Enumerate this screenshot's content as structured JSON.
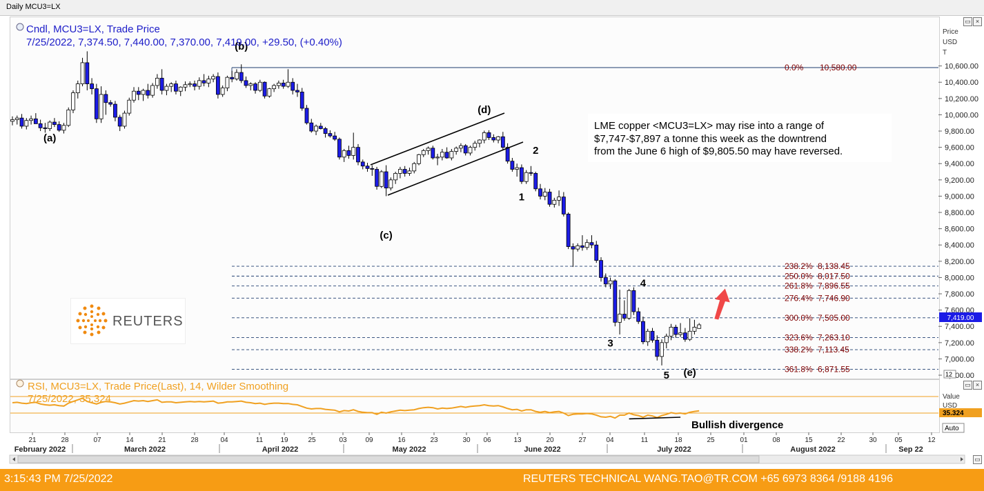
{
  "window": {
    "title": "Daily MCU3=LX"
  },
  "legend": {
    "line1": "Cndl, MCU3=LX, Trade Price",
    "line2": "7/25/2022, 7,374.50, 7,440.00, 7,370.00, 7,419.00, +29.50, (+0.40%)"
  },
  "rsi_legend": {
    "line1": "RSI, MCU3=LX, Trade Price(Last),  14, Wilder Smoothing",
    "line2": "7/25/2022, 35.324"
  },
  "annotation_text": [
    "LME copper <MCU3=LX> may rise into a range of",
    "$7,747-$7,897 a tonne this week as the downtrend",
    "from the June 6 high of $9,805.50 may have reversed."
  ],
  "bullish_label": "Bullish divergence",
  "price_axis_title": [
    "Price",
    "USD",
    "T"
  ],
  "rsi_axis_title": [
    "Value",
    "USD"
  ],
  "last_price_tag": "7,419.00",
  "rsi_tag": "35.324",
  "zoom_label": "12",
  "auto_label": "Auto",
  "logo_text": "REUTERS",
  "footer": {
    "time": "3:15:43 PM 7/25/2022",
    "contact": "REUTERS TECHNICAL  WANG.TAO@TR.COM  +65 6973 8364 /9188 4196"
  },
  "colors": {
    "up_candle": "#ffffff",
    "down_candle": "#1c1ce6",
    "legend_blue": "#1c1cc8",
    "rsi_orange": "#f0a020",
    "fib_label": "#800000",
    "footer_bg": "#f79c14",
    "arrow_red": "#f04848"
  },
  "chart_data": {
    "type": "candlestick",
    "ylim": [
      6700,
      10750
    ],
    "y_ticks": [
      "6,800.00",
      "7,000.00",
      "7,200.00",
      "7,400.00",
      "7,600.00",
      "7,800.00",
      "8,000.00",
      "8,200.00",
      "8,400.00",
      "8,600.00",
      "8,800.00",
      "9,000.00",
      "9,200.00",
      "9,400.00",
      "9,600.00",
      "9,800.00",
      "10,000.00",
      "10,200.00",
      "10,400.00",
      "10,600.00"
    ],
    "x_day_labels": [
      "21",
      "28",
      "07",
      "14",
      "21",
      "28",
      "04",
      "11",
      "19",
      "25",
      "03",
      "09",
      "16",
      "23",
      "30",
      "06",
      "13",
      "20",
      "27",
      "04",
      "11",
      "18",
      "25",
      "01",
      "08",
      "15",
      "22",
      "30",
      "05",
      "12"
    ],
    "x_month_labels": [
      "February 2022",
      "March 2022",
      "April 2022",
      "May 2022",
      "June 2022",
      "July 2022",
      "August 2022",
      "Sep 22"
    ],
    "fib_levels": [
      {
        "label": "0.0%",
        "value": "10,580.00",
        "price": 10580
      },
      {
        "label": "238.2%",
        "value": "8,138.45",
        "price": 8138.45
      },
      {
        "label": "250.0%",
        "value": "8,017.50",
        "price": 8017.5
      },
      {
        "label": "261.8%",
        "value": "7,896.55",
        "price": 7896.55
      },
      {
        "label": "276.4%",
        "value": "7,746.90",
        "price": 7746.9
      },
      {
        "label": "300.0%",
        "value": "7,505.00",
        "price": 7505
      },
      {
        "label": "323.6%",
        "value": "7,263.10",
        "price": 7263.1
      },
      {
        "label": "338.2%",
        "value": "7,113.45",
        "price": 7113.45
      },
      {
        "label": "361.8%",
        "value": "6,871.55",
        "price": 6871.55
      }
    ],
    "wave_labels": [
      {
        "text": "(a)",
        "idx": 8,
        "price": 9675
      },
      {
        "text": "(b)",
        "idx": 49,
        "price": 10800
      },
      {
        "text": "(c)",
        "idx": 80,
        "price": 8480
      },
      {
        "text": "(d)",
        "idx": 101,
        "price": 10020
      },
      {
        "text": "1",
        "idx": 109,
        "price": 8950
      },
      {
        "text": "2",
        "idx": 112,
        "price": 9520
      },
      {
        "text": "3",
        "idx": 128,
        "price": 7150
      },
      {
        "text": "4",
        "idx": 135,
        "price": 7890
      },
      {
        "text": "5",
        "idx": 140,
        "price": 6760
      },
      {
        "text": "(e)",
        "idx": 145,
        "price": 6790
      }
    ],
    "candles": [
      [
        9920,
        9980,
        9870,
        9940
      ],
      [
        9940,
        9990,
        9880,
        9960
      ],
      [
        9960,
        10010,
        9830,
        9860
      ],
      [
        9860,
        9960,
        9820,
        9930
      ],
      [
        9930,
        9990,
        9880,
        9950
      ],
      [
        9950,
        10020,
        9900,
        9890
      ],
      [
        9890,
        9940,
        9800,
        9840
      ],
      [
        9840,
        9900,
        9780,
        9830
      ],
      [
        9830,
        9930,
        9800,
        9910
      ],
      [
        9910,
        9960,
        9850,
        9880
      ],
      [
        9880,
        9920,
        9790,
        9810
      ],
      [
        9810,
        9900,
        9770,
        9870
      ],
      [
        9870,
        10090,
        9850,
        10060
      ],
      [
        10060,
        10300,
        10020,
        10270
      ],
      [
        10270,
        10420,
        10200,
        10380
      ],
      [
        10380,
        10700,
        10350,
        10640
      ],
      [
        10640,
        10780,
        10300,
        10380
      ],
      [
        10380,
        10450,
        10250,
        10320
      ],
      [
        10320,
        10380,
        9900,
        9950
      ],
      [
        9950,
        10350,
        9900,
        10250
      ],
      [
        10250,
        10300,
        10000,
        10150
      ],
      [
        10150,
        10180,
        10100,
        10130
      ],
      [
        10130,
        10170,
        9920,
        9970
      ],
      [
        9970,
        10000,
        9800,
        9860
      ],
      [
        9860,
        10050,
        9830,
        10020
      ],
      [
        10020,
        10210,
        9990,
        10180
      ],
      [
        10180,
        10340,
        10150,
        10290
      ],
      [
        10290,
        10340,
        10180,
        10250
      ],
      [
        10250,
        10320,
        10170,
        10300
      ],
      [
        10300,
        10380,
        10200,
        10240
      ],
      [
        10240,
        10390,
        10210,
        10360
      ],
      [
        10360,
        10500,
        10320,
        10450
      ],
      [
        10450,
        10560,
        10250,
        10300
      ],
      [
        10300,
        10380,
        10240,
        10350
      ],
      [
        10350,
        10400,
        10280,
        10380
      ],
      [
        10380,
        10420,
        10250,
        10290
      ],
      [
        10290,
        10350,
        10230,
        10340
      ],
      [
        10340,
        10410,
        10290,
        10370
      ],
      [
        10370,
        10410,
        10340,
        10380
      ],
      [
        10380,
        10420,
        10300,
        10350
      ],
      [
        10350,
        10460,
        10310,
        10420
      ],
      [
        10420,
        10500,
        10350,
        10390
      ],
      [
        10390,
        10480,
        10340,
        10440
      ],
      [
        10440,
        10500,
        10400,
        10470
      ],
      [
        10470,
        10520,
        10200,
        10250
      ],
      [
        10250,
        10360,
        10220,
        10330
      ],
      [
        10330,
        10480,
        10290,
        10460
      ],
      [
        10460,
        10540,
        10400,
        10440
      ],
      [
        10440,
        10560,
        10420,
        10520
      ],
      [
        10520,
        10620,
        10390,
        10420
      ],
      [
        10420,
        10470,
        10330,
        10360
      ],
      [
        10360,
        10400,
        10300,
        10380
      ],
      [
        10380,
        10400,
        10260,
        10300
      ],
      [
        10300,
        10430,
        10280,
        10400
      ],
      [
        10400,
        10410,
        10200,
        10230
      ],
      [
        10230,
        10330,
        10210,
        10320
      ],
      [
        10320,
        10380,
        10280,
        10360
      ],
      [
        10360,
        10420,
        10320,
        10390
      ],
      [
        10390,
        10430,
        10320,
        10350
      ],
      [
        10350,
        10560,
        10330,
        10400
      ],
      [
        10400,
        10450,
        10250,
        10300
      ],
      [
        10300,
        10380,
        10220,
        10280
      ],
      [
        10280,
        10330,
        10050,
        10080
      ],
      [
        10080,
        10120,
        9880,
        9900
      ],
      [
        9900,
        9950,
        9780,
        9800
      ],
      [
        9800,
        9880,
        9750,
        9860
      ],
      [
        9860,
        9900,
        9820,
        9830
      ],
      [
        9830,
        9850,
        9720,
        9770
      ],
      [
        9770,
        9810,
        9720,
        9740
      ],
      [
        9740,
        9790,
        9680,
        9700
      ],
      [
        9700,
        9720,
        9450,
        9480
      ],
      [
        9480,
        9580,
        9420,
        9560
      ],
      [
        9560,
        9620,
        9460,
        9500
      ],
      [
        9500,
        9780,
        9450,
        9600
      ],
      [
        9600,
        9640,
        9380,
        9420
      ],
      [
        9420,
        9450,
        9330,
        9370
      ],
      [
        9370,
        9410,
        9300,
        9340
      ],
      [
        9340,
        9380,
        9250,
        9330
      ],
      [
        9330,
        9360,
        9080,
        9120
      ],
      [
        9120,
        9320,
        9100,
        9300
      ],
      [
        9300,
        9380,
        9000,
        9100
      ],
      [
        9100,
        9230,
        9070,
        9200
      ],
      [
        9200,
        9300,
        9150,
        9280
      ],
      [
        9280,
        9360,
        9220,
        9330
      ],
      [
        9330,
        9370,
        9240,
        9280
      ],
      [
        9280,
        9350,
        9250,
        9310
      ],
      [
        9310,
        9420,
        9280,
        9400
      ],
      [
        9400,
        9520,
        9380,
        9510
      ],
      [
        9510,
        9580,
        9480,
        9560
      ],
      [
        9560,
        9610,
        9510,
        9590
      ],
      [
        9590,
        9620,
        9450,
        9470
      ],
      [
        9470,
        9520,
        9380,
        9480
      ],
      [
        9480,
        9580,
        9440,
        9540
      ],
      [
        9540,
        9600,
        9460,
        9470
      ],
      [
        9470,
        9580,
        9440,
        9550
      ],
      [
        9550,
        9610,
        9510,
        9590
      ],
      [
        9590,
        9650,
        9540,
        9620
      ],
      [
        9620,
        9640,
        9500,
        9530
      ],
      [
        9530,
        9620,
        9500,
        9600
      ],
      [
        9600,
        9680,
        9560,
        9650
      ],
      [
        9650,
        9700,
        9600,
        9690
      ],
      [
        9690,
        9805,
        9650,
        9780
      ],
      [
        9780,
        9810,
        9690,
        9720
      ],
      [
        9720,
        9760,
        9660,
        9690
      ],
      [
        9690,
        9740,
        9650,
        9730
      ],
      [
        9730,
        9790,
        9570,
        9600
      ],
      [
        9600,
        9650,
        9400,
        9430
      ],
      [
        9430,
        9470,
        9300,
        9330
      ],
      [
        9330,
        9400,
        9240,
        9350
      ],
      [
        9350,
        9390,
        9150,
        9180
      ],
      [
        9180,
        9320,
        9150,
        9290
      ],
      [
        9290,
        9370,
        9250,
        9280
      ],
      [
        9280,
        9300,
        9060,
        9090
      ],
      [
        9090,
        9150,
        8960,
        9000
      ],
      [
        9000,
        9100,
        8950,
        9050
      ],
      [
        9050,
        9090,
        8870,
        8900
      ],
      [
        8900,
        8980,
        8860,
        8950
      ],
      [
        8950,
        9070,
        8880,
        8990
      ],
      [
        8990,
        9050,
        8750,
        8780
      ],
      [
        8780,
        8800,
        8350,
        8380
      ],
      [
        8380,
        8420,
        8130,
        8350
      ],
      [
        8350,
        8420,
        8320,
        8390
      ],
      [
        8390,
        8520,
        8330,
        8370
      ],
      [
        8370,
        8470,
        8340,
        8430
      ],
      [
        8430,
        8520,
        8360,
        8400
      ],
      [
        8400,
        8450,
        8180,
        8210
      ],
      [
        8210,
        8250,
        7950,
        8000
      ],
      [
        8000,
        8050,
        7880,
        7920
      ],
      [
        7920,
        8000,
        7860,
        7960
      ],
      [
        7960,
        7980,
        7400,
        7450
      ],
      [
        7450,
        7850,
        7300,
        7550
      ],
      [
        7550,
        7720,
        7470,
        7500
      ],
      [
        7500,
        7860,
        7480,
        7840
      ],
      [
        7840,
        7880,
        7540,
        7580
      ],
      [
        7580,
        7630,
        7430,
        7460
      ],
      [
        7460,
        7520,
        7180,
        7210
      ],
      [
        7210,
        7370,
        7160,
        7340
      ],
      [
        7340,
        7380,
        7200,
        7230
      ],
      [
        7230,
        7290,
        6980,
        7030
      ],
      [
        7030,
        7240,
        6920,
        7200
      ],
      [
        7200,
        7310,
        7130,
        7280
      ],
      [
        7280,
        7430,
        7230,
        7390
      ],
      [
        7390,
        7420,
        7260,
        7300
      ],
      [
        7300,
        7440,
        7270,
        7320
      ],
      [
        7320,
        7380,
        7210,
        7240
      ],
      [
        7240,
        7500,
        7220,
        7340
      ],
      [
        7340,
        7480,
        7300,
        7390
      ],
      [
        7374.5,
        7440,
        7370,
        7419
      ]
    ],
    "rsi": {
      "ylim": [
        0,
        100
      ],
      "overbought": 70,
      "oversold": 30,
      "last": 35.324,
      "values": [
        55,
        56,
        54,
        53,
        55,
        56,
        52,
        50,
        49,
        50,
        48,
        47,
        54,
        58,
        62,
        66,
        58,
        55,
        52,
        56,
        58,
        57,
        55,
        52,
        54,
        57,
        60,
        59,
        60,
        58,
        60,
        62,
        56,
        57,
        57,
        55,
        56,
        57,
        58,
        57,
        58,
        57,
        58,
        59,
        54,
        55,
        57,
        57,
        58,
        59,
        56,
        55,
        53,
        54,
        51,
        53,
        54,
        54,
        53,
        53,
        51,
        50,
        46,
        42,
        40,
        41,
        41,
        39,
        38,
        37,
        33,
        36,
        35,
        38,
        34,
        32,
        31,
        31,
        27,
        32,
        30,
        33,
        35,
        37,
        36,
        37,
        38,
        41,
        43,
        44,
        43,
        40,
        42,
        41,
        42,
        44,
        46,
        44,
        46,
        47,
        48,
        50,
        48,
        47,
        48,
        45,
        41,
        38,
        39,
        35,
        38,
        38,
        34,
        32,
        34,
        31,
        33,
        34,
        30,
        24,
        27,
        28,
        28,
        29,
        28,
        25,
        21,
        20,
        22,
        18,
        25,
        25,
        30,
        26,
        24,
        20,
        25,
        23,
        19,
        24,
        27,
        31,
        29,
        30,
        28,
        32,
        34,
        35.3
      ]
    },
    "divergence_line": [
      [
        132,
        16
      ],
      [
        143,
        20
      ]
    ]
  }
}
